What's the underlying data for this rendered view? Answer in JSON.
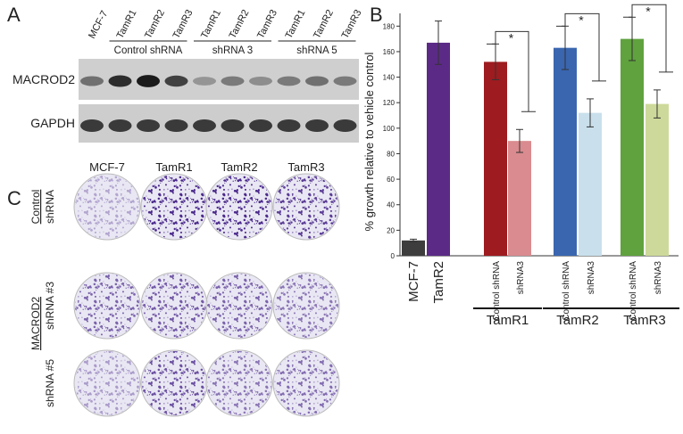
{
  "panels": {
    "a": "A",
    "b": "B",
    "c": "C"
  },
  "blot": {
    "lanes": [
      "MCF-7",
      "TamR1",
      "TamR2",
      "TamR3",
      "TamR1",
      "TamR2",
      "TamR3",
      "TamR1",
      "TamR2",
      "TamR3"
    ],
    "groups": [
      "Control shRNA",
      "shRNA 3",
      "shRNA 5"
    ],
    "rows": [
      "MACROD2",
      "GAPDH"
    ]
  },
  "colony": {
    "columns": [
      "MCF-7",
      "TamR1",
      "TamR2",
      "TamR3"
    ],
    "control": "Control",
    "group": "MACROD2",
    "rows": [
      "shRNA",
      "shRNA #3",
      "shRNA #5"
    ]
  },
  "chart_data": {
    "type": "bar",
    "ylabel": "% growth relative to vehicle control",
    "categories": [
      "MCF-7",
      "TamR2",
      "Control shRNA",
      "shRNA3",
      "Control shRNA",
      "shRNA3",
      "Control shRNA",
      "shRNA3"
    ],
    "values": [
      12,
      167,
      152,
      90,
      163,
      112,
      170,
      119
    ],
    "errors": [
      1,
      17,
      14,
      9,
      17,
      11,
      17,
      11
    ],
    "colors": [
      "#3d3d3d",
      "#5b2a86",
      "#9e1b20",
      "#d98b8f",
      "#3a66b0",
      "#c9dfec",
      "#5fa23e",
      "#cdd99a"
    ],
    "ylim": [
      0,
      190
    ],
    "yticks": [
      0,
      20,
      40,
      60,
      80,
      100,
      120,
      140,
      160,
      180
    ],
    "groups": [
      "TamR1",
      "TamR2",
      "TamR3"
    ],
    "annotations": [
      "*",
      "*",
      "*"
    ]
  }
}
